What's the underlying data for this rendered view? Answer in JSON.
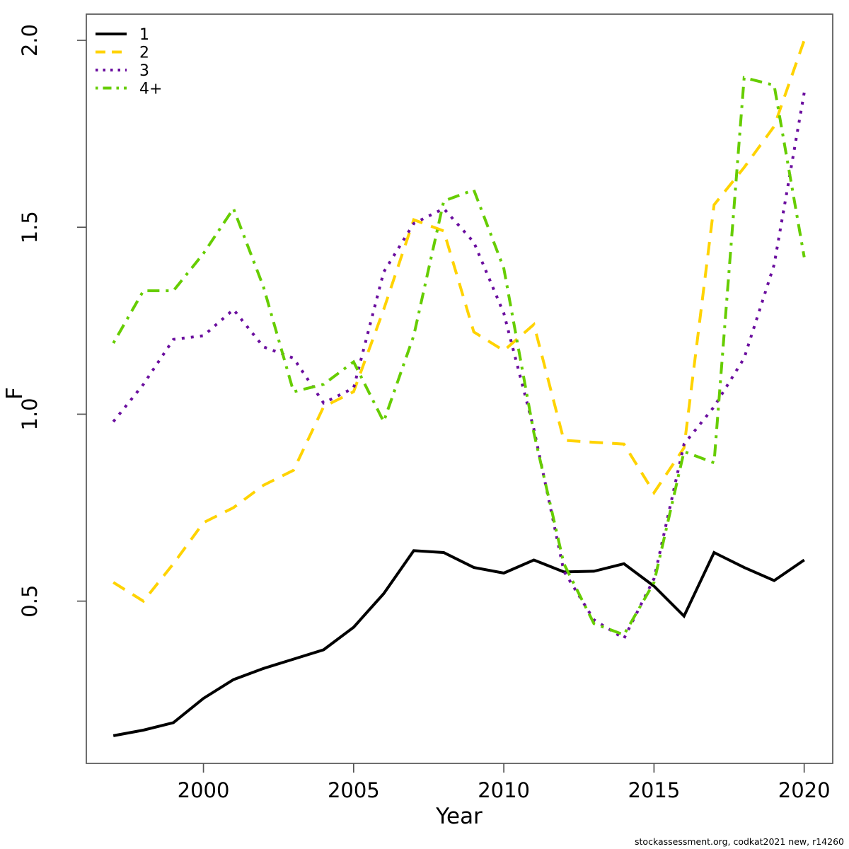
{
  "page": {
    "footer": "stockassessment.org, codkat2021 new, r14260"
  },
  "chart_data": {
    "type": "line",
    "title": "",
    "xlabel": "Year",
    "ylabel": "F",
    "grid": false,
    "legend_position": "top-left",
    "xlim": [
      1996.1,
      2020.95
    ],
    "ylim": [
      0.066,
      2.07
    ],
    "xticks": [
      2000,
      2005,
      2010,
      2015,
      2020
    ],
    "xtick_labels": [
      "2000",
      "2005",
      "2010",
      "2015",
      "2020"
    ],
    "yticks": [
      0.5,
      1.0,
      1.5,
      2.0
    ],
    "ytick_labels": [
      "0.5",
      "1.0",
      "1.5",
      "2.0"
    ],
    "x": [
      1997,
      1998,
      1999,
      2000,
      2001,
      2002,
      2003,
      2004,
      2005,
      2006,
      2007,
      2008,
      2009,
      2010,
      2011,
      2012,
      2013,
      2014,
      2015,
      2016,
      2017,
      2018,
      2019,
      2020
    ],
    "series": [
      {
        "name": "1",
        "color": "#000000",
        "linestyle": "solid",
        "values": [
          0.14,
          0.155,
          0.175,
          0.24,
          0.29,
          0.32,
          0.345,
          0.37,
          0.43,
          0.52,
          0.635,
          0.63,
          0.59,
          0.575,
          0.61,
          0.578,
          0.58,
          0.6,
          0.54,
          0.46,
          0.63,
          0.59,
          0.555,
          0.61
        ]
      },
      {
        "name": "2",
        "color": "#FFD300",
        "linestyle": "dashed",
        "values": [
          0.55,
          0.5,
          0.6,
          0.71,
          0.75,
          0.81,
          0.85,
          1.02,
          1.06,
          1.28,
          1.52,
          1.49,
          1.22,
          1.17,
          1.24,
          0.93,
          0.925,
          0.92,
          0.79,
          0.91,
          1.56,
          1.66,
          1.77,
          2.0
        ]
      },
      {
        "name": "3",
        "color": "#6A0D9E",
        "linestyle": "dotted",
        "values": [
          0.98,
          1.08,
          1.2,
          1.21,
          1.28,
          1.18,
          1.15,
          1.03,
          1.07,
          1.38,
          1.51,
          1.55,
          1.46,
          1.27,
          0.96,
          0.58,
          0.45,
          0.4,
          0.56,
          0.92,
          1.02,
          1.15,
          1.4,
          1.86
        ]
      },
      {
        "name": "4+",
        "color": "#66CD00",
        "linestyle": "dashdot",
        "values": [
          1.19,
          1.33,
          1.33,
          1.43,
          1.55,
          1.34,
          1.06,
          1.08,
          1.14,
          0.98,
          1.21,
          1.57,
          1.6,
          1.39,
          0.95,
          0.6,
          0.44,
          0.41,
          0.55,
          0.9,
          0.87,
          1.9,
          1.88,
          1.42
        ]
      }
    ]
  }
}
